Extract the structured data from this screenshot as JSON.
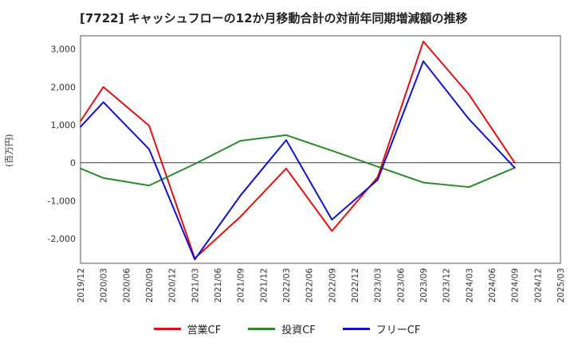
{
  "chart_data": {
    "type": "line",
    "title": "[7722]  キャッシュフローの12か月移動合計の対前年同期増減額の推移",
    "xlabel": "",
    "ylabel": "(百万円)",
    "ylim": [
      -2650,
      3350
    ],
    "yticks": [
      3000,
      2000,
      1000,
      0,
      -1000,
      -2000
    ],
    "ytick_labels": [
      "3,000",
      "2,000",
      "1,000",
      "0",
      "-1,000",
      "-2,000"
    ],
    "categories": [
      "2019/12",
      "2020/03",
      "2020/06",
      "2020/09",
      "2020/12",
      "2021/03",
      "2021/06",
      "2021/09",
      "2021/12",
      "2022/03",
      "2022/06",
      "2022/09",
      "2022/12",
      "2023/03",
      "2023/06",
      "2023/09",
      "2023/12",
      "2024/03",
      "2024/06",
      "2024/09",
      "2024/12",
      "2025/03"
    ],
    "grid": true,
    "legend_position": "bottom",
    "series": [
      {
        "name": "営業CF",
        "color": "#dd1111",
        "values": [
          1100,
          2000,
          null,
          980,
          null,
          -2520,
          null,
          -1420,
          null,
          -150,
          null,
          -1800,
          null,
          -380,
          null,
          3200,
          null,
          1800,
          null,
          0,
          null,
          null
        ]
      },
      {
        "name": "投資CF",
        "color": "#2a8a2a",
        "values": [
          -150,
          -400,
          null,
          -600,
          null,
          -30,
          null,
          580,
          null,
          730,
          null,
          320,
          null,
          -100,
          null,
          -520,
          null,
          -640,
          null,
          -130,
          null,
          null
        ]
      },
      {
        "name": "フリーCF",
        "color": "#1111cc",
        "values": [
          950,
          1600,
          null,
          360,
          null,
          -2550,
          null,
          -860,
          null,
          600,
          null,
          -1500,
          null,
          -450,
          null,
          2680,
          null,
          1150,
          null,
          -130,
          null,
          null
        ]
      }
    ]
  }
}
